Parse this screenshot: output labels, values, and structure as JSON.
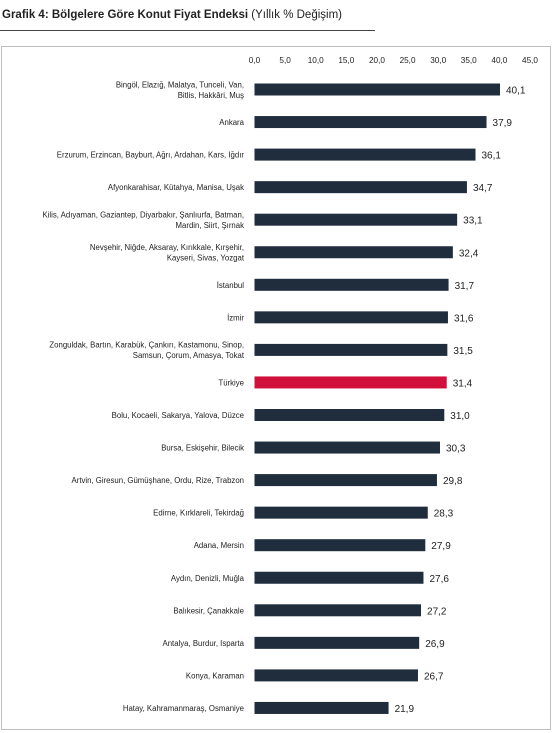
{
  "title": {
    "bold": "Grafik 4: Bölgelere Göre Konut Fiyat Endeksi",
    "normal": "(Yıllık % Değişim)"
  },
  "colors": {
    "bar": "#1f2d3d",
    "highlight": "#d0103a",
    "frame": "#bfbfbf"
  },
  "chart_data": {
    "type": "bar",
    "orientation": "horizontal",
    "xlim": [
      0,
      45
    ],
    "ticks": [
      "0,0",
      "5,0",
      "10,0",
      "15,0",
      "20,0",
      "25,0",
      "30,0",
      "35,0",
      "40,0",
      "45,0"
    ],
    "tick_values": [
      0,
      5,
      10,
      15,
      20,
      25,
      30,
      35,
      40,
      45
    ],
    "axis_position": "top",
    "grid": false,
    "highlight_category": "Türkiye",
    "categories": [
      [
        "Bingöl, Elazığ, Malatya, Tunceli, Van,",
        "Bitlis, Hakkâri, Muş"
      ],
      [
        "Ankara"
      ],
      [
        "Erzurum, Erzincan, Bayburt, Ağrı, Ardahan, Kars, Iğdır"
      ],
      [
        "Afyonkarahisar, Kütahya, Manisa, Uşak"
      ],
      [
        "Kilis, Adıyaman, Gaziantep, Diyarbakır, Şanlıurfa, Batman,",
        "Mardin, Siirt, Şırnak"
      ],
      [
        "Nevşehir, Niğde, Aksaray, Kırıkkale, Kırşehir,",
        "Kayseri, Sivas, Yozgat"
      ],
      [
        "İstanbul"
      ],
      [
        "İzmir"
      ],
      [
        "Zonguldak, Bartın, Karabük, Çankırı, Kastamonu, Sinop,",
        "Samsun, Çorum, Amasya, Tokat"
      ],
      [
        "Türkiye"
      ],
      [
        "Bolu, Kocaeli, Sakarya, Yalova, Düzce"
      ],
      [
        "Bursa, Eskişehir, Bilecik"
      ],
      [
        "Artvin, Giresun, Gümüşhane, Ordu, Rize, Trabzon"
      ],
      [
        "Edirne, Kırklareli, Tekirdağ"
      ],
      [
        "Adana, Mersin"
      ],
      [
        "Aydın, Denizli, Muğla"
      ],
      [
        "Balıkesir, Çanakkale"
      ],
      [
        "Antalya, Burdur, Isparta"
      ],
      [
        "Konya, Karaman"
      ],
      [
        "Hatay, Kahramanmaraş, Osmaniye"
      ]
    ],
    "values": [
      40.1,
      37.9,
      36.1,
      34.7,
      33.1,
      32.4,
      31.7,
      31.6,
      31.5,
      31.4,
      31.0,
      30.3,
      29.8,
      28.3,
      27.9,
      27.6,
      27.2,
      26.9,
      26.7,
      21.9
    ],
    "value_labels": [
      "40,1",
      "37,9",
      "36,1",
      "34,7",
      "33,1",
      "32,4",
      "31,7",
      "31,6",
      "31,5",
      "31,4",
      "31,0",
      "30,3",
      "29,8",
      "28,3",
      "27,9",
      "27,6",
      "27,2",
      "26,9",
      "26,7",
      "21,9"
    ]
  }
}
